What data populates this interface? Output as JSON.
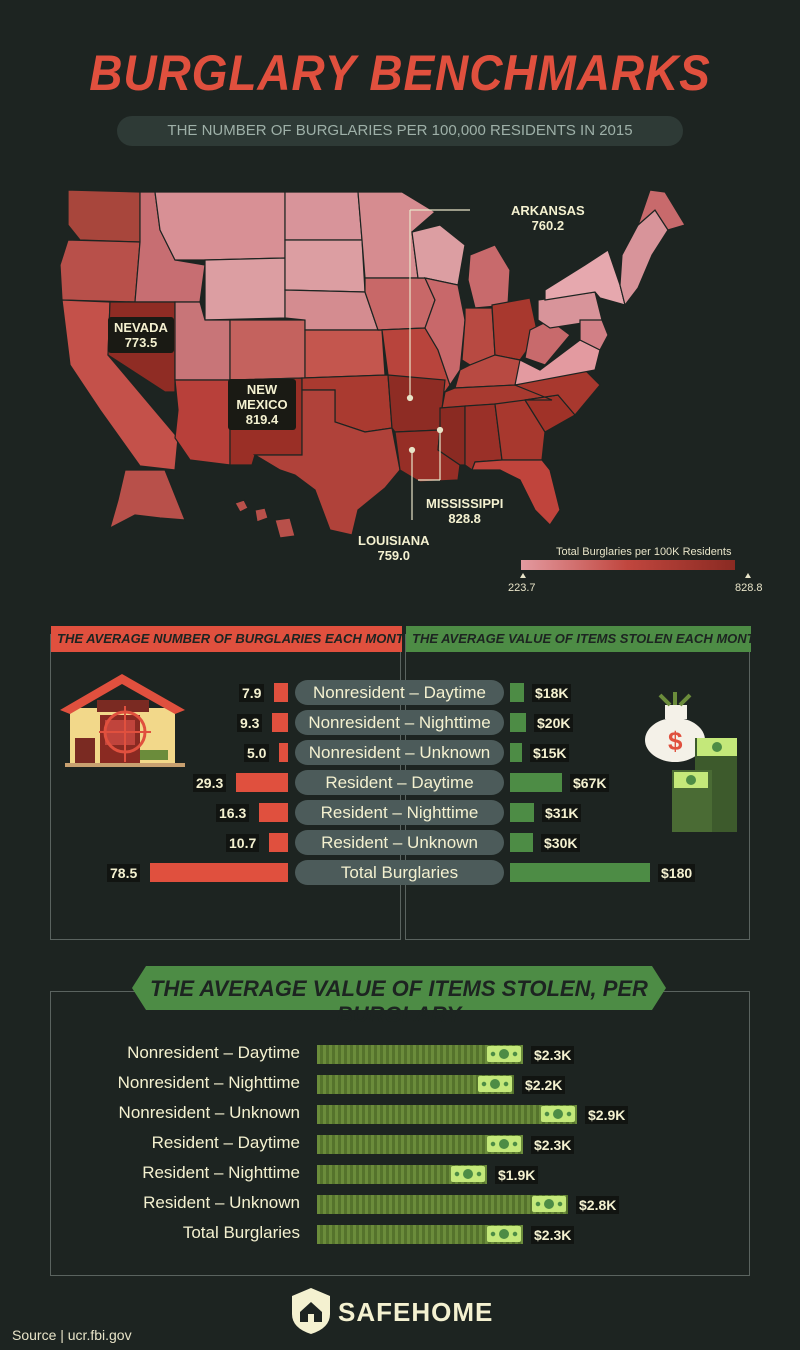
{
  "title": "BURGLARY BENCHMARKS",
  "subtitle": "THE NUMBER OF BURGLARIES PER 100,000 RESIDENTS IN 2015",
  "map": {
    "labels": [
      {
        "state": "ARKANSAS",
        "value": "760.2"
      },
      {
        "state": "NEVADA",
        "value": "773.5"
      },
      {
        "state": "NEW MEXICO",
        "value": "819.4"
      },
      {
        "state": "MISSISSIPPI",
        "value": "828.8"
      },
      {
        "state": "LOUISIANA",
        "value": "759.0"
      }
    ],
    "legend": {
      "title": "Total Burglaries per 100K Residents",
      "min": "223.7",
      "max": "828.8",
      "min_color": "#e39aa0",
      "max_color": "#8a2a22"
    }
  },
  "chart_data": [
    {
      "type": "bar",
      "title": "THE AVERAGE NUMBER OF BURGLARIES EACH MONTH",
      "categories": [
        "Nonresident – Daytime",
        "Nonresident – Nighttime",
        "Nonresident – Unknown",
        "Resident – Daytime",
        "Resident – Nighttime",
        "Resident – Unknown",
        "Total Burglaries"
      ],
      "values": [
        7.9,
        9.3,
        5.0,
        29.3,
        16.3,
        10.7,
        78.5
      ],
      "labels": [
        "7.9",
        "9.3",
        "5.0",
        "29.3",
        "16.3",
        "10.7",
        "78.5"
      ],
      "color": "#e0503e"
    },
    {
      "type": "bar",
      "title": "THE AVERAGE VALUE OF ITEMS STOLEN EACH MONTH",
      "categories": [
        "Nonresident – Daytime",
        "Nonresident – Nighttime",
        "Nonresident – Unknown",
        "Resident – Daytime",
        "Resident – Nighttime",
        "Resident – Unknown",
        "Total Burglaries"
      ],
      "values": [
        18,
        20,
        15,
        67,
        31,
        30,
        180
      ],
      "labels": [
        "$18K",
        "$20K",
        "$15K",
        "$67K",
        "$31K",
        "$30K",
        "$180"
      ],
      "color": "#4d8c45"
    },
    {
      "type": "bar",
      "title": "THE AVERAGE VALUE OF ITEMS STOLEN, PER BURGLARY",
      "categories": [
        "Nonresident – Daytime",
        "Nonresident – Nighttime",
        "Nonresident – Unknown",
        "Resident – Daytime",
        "Resident – Nighttime",
        "Resident – Unknown",
        "Total Burglaries"
      ],
      "values": [
        2.3,
        2.2,
        2.9,
        2.3,
        1.9,
        2.8,
        2.3
      ],
      "labels": [
        "$2.3K",
        "$2.2K",
        "$2.9K",
        "$2.3K",
        "$1.9K",
        "$2.8K",
        "$2.3K"
      ],
      "color": "#6b8c3b"
    }
  ],
  "brand": "SAFEHOME",
  "source": "Source | ucr.fbi.gov"
}
